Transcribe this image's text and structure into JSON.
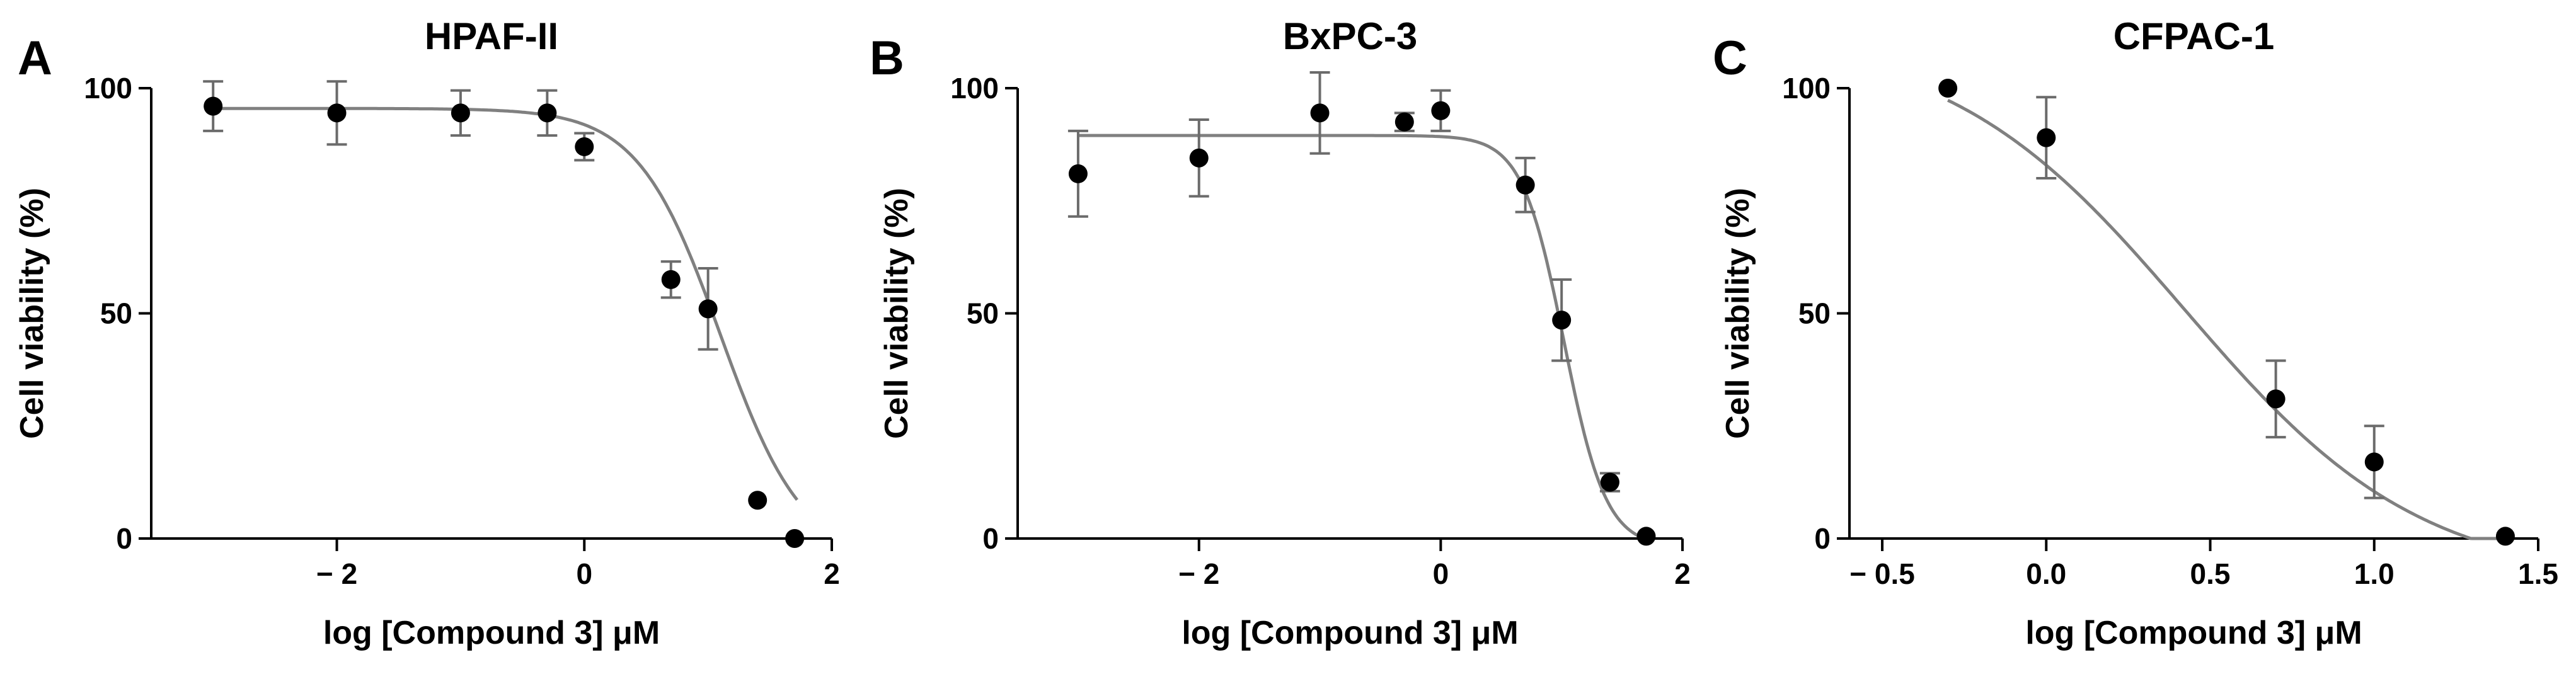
{
  "chart_data": [
    {
      "type": "scatter",
      "panel_label": "A",
      "title": "HPAF-II",
      "xlabel": "log [Compound 3] μM",
      "ylabel": "Cell viability (%)",
      "xlim": [
        -3.5,
        2.0
      ],
      "ylim": [
        0,
        100
      ],
      "xticks": [
        -2,
        0,
        2
      ],
      "xtick_labels": [
        "− 2",
        "0",
        "2"
      ],
      "yticks": [
        0,
        50,
        100
      ],
      "ytick_labels": [
        "0",
        "50",
        "100"
      ],
      "grid": false,
      "series": [
        {
          "x": [
            -3.0,
            -2.0,
            -1.0,
            -0.3,
            0.0,
            0.7,
            1.0,
            1.4,
            1.7
          ],
          "y": [
            96,
            94.5,
            94.5,
            94.5,
            87,
            57.5,
            51,
            8.5,
            0
          ],
          "err": [
            5.5,
            7,
            5,
            5,
            3,
            4,
            9,
            0,
            0
          ]
        }
      ],
      "fit": {
        "model": "4-parameter logistic",
        "top": 95.5,
        "bottom": -5,
        "log_ic50": 1.1,
        "hill_slope": 1.3,
        "x_range": [
          -3.0,
          1.72
        ]
      }
    },
    {
      "type": "scatter",
      "panel_label": "B",
      "title": "BxPC-3",
      "xlabel": "log [Compound 3] μM",
      "ylabel": "Cell viability (%)",
      "xlim": [
        -3.5,
        2.0
      ],
      "ylim": [
        0,
        100
      ],
      "xticks": [
        -2,
        0,
        2
      ],
      "xtick_labels": [
        "− 2",
        "0",
        "2"
      ],
      "yticks": [
        0,
        50,
        100
      ],
      "ytick_labels": [
        "0",
        "50",
        "100"
      ],
      "grid": false,
      "series": [
        {
          "x": [
            -3.0,
            -2.0,
            -1.0,
            -0.3,
            0.0,
            0.7,
            1.0,
            1.4,
            1.7
          ],
          "y": [
            81,
            84.5,
            94.5,
            92.5,
            95,
            78.5,
            48.5,
            12.5,
            0.5
          ],
          "err": [
            9.5,
            8.5,
            9,
            2,
            4.5,
            6,
            9,
            2,
            0
          ]
        }
      ],
      "fit": {
        "model": "4-parameter logistic",
        "top": 89.5,
        "bottom": -2,
        "log_ic50": 1.02,
        "hill_slope": 2.5,
        "x_range": [
          -3.0,
          1.72
        ]
      }
    },
    {
      "type": "scatter",
      "panel_label": "C",
      "title": "CFPAC-1",
      "xlabel": "log [Compound 3] μM",
      "ylabel": "Cell viability (%)",
      "xlim": [
        -0.6,
        1.5
      ],
      "ylim": [
        0,
        100
      ],
      "xticks": [
        -0.5,
        0.0,
        0.5,
        1.0,
        1.5
      ],
      "xtick_labels": [
        "− 0.5",
        "0.0",
        "0.5",
        "1.0",
        "1.5"
      ],
      "yticks": [
        0,
        50,
        100
      ],
      "ytick_labels": [
        "0",
        "50",
        "100"
      ],
      "grid": false,
      "series": [
        {
          "x": [
            -0.3,
            0.0,
            0.7,
            1.0,
            1.4
          ],
          "y": [
            100,
            89,
            31,
            17,
            0.5
          ],
          "err": [
            0,
            9,
            8.5,
            8,
            0
          ]
        }
      ],
      "fit": {
        "model": "4-parameter logistic",
        "top": 112,
        "bottom": -10,
        "log_ic50": 0.42,
        "hill_slope": 1.2,
        "x_range": [
          -0.3,
          1.4
        ]
      }
    }
  ]
}
